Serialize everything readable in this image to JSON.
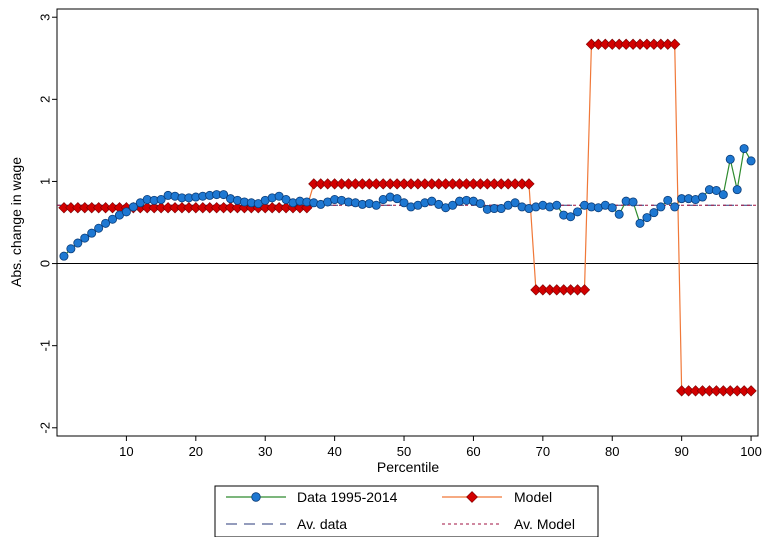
{
  "chart_data": {
    "type": "line",
    "xlabel": "Percentile",
    "ylabel": "Abs. change in wage",
    "xlim": [
      0,
      101
    ],
    "ylim": [
      -2.1,
      3.1
    ],
    "xticks": [
      10,
      20,
      30,
      40,
      50,
      60,
      70,
      80,
      90,
      100
    ],
    "xtick_labels": [
      "10",
      "20",
      "30",
      "40",
      "50",
      "60",
      "70",
      "80",
      "90",
      "100"
    ],
    "yticks": [
      -2,
      -1,
      0,
      1,
      2,
      3
    ],
    "ytick_labels": [
      "-2",
      "-1",
      "0",
      "1",
      "2",
      "3"
    ],
    "zero_line": true,
    "grid": false,
    "legend_position": "bottom",
    "series": [
      {
        "name": "Data 1995-2014",
        "kind": "line-markers",
        "line_color": "#2e8b2e",
        "marker_color": "#1e78d2",
        "marker": "circle",
        "x": [
          1,
          2,
          3,
          4,
          5,
          6,
          7,
          8,
          9,
          10,
          11,
          12,
          13,
          14,
          15,
          16,
          17,
          18,
          19,
          20,
          21,
          22,
          23,
          24,
          25,
          26,
          27,
          28,
          29,
          30,
          31,
          32,
          33,
          34,
          35,
          36,
          37,
          38,
          39,
          40,
          41,
          42,
          43,
          44,
          45,
          46,
          47,
          48,
          49,
          50,
          51,
          52,
          53,
          54,
          55,
          56,
          57,
          58,
          59,
          60,
          61,
          62,
          63,
          64,
          65,
          66,
          67,
          68,
          69,
          70,
          71,
          72,
          73,
          74,
          75,
          76,
          77,
          78,
          79,
          80,
          81,
          82,
          83,
          84,
          85,
          86,
          87,
          88,
          89,
          90,
          91,
          92,
          93,
          94,
          95,
          96,
          97,
          98,
          99,
          100
        ],
        "y": [
          0.09,
          0.18,
          0.25,
          0.31,
          0.37,
          0.43,
          0.49,
          0.54,
          0.59,
          0.63,
          0.69,
          0.74,
          0.78,
          0.77,
          0.78,
          0.83,
          0.82,
          0.8,
          0.8,
          0.81,
          0.82,
          0.83,
          0.84,
          0.84,
          0.79,
          0.77,
          0.75,
          0.74,
          0.73,
          0.77,
          0.8,
          0.82,
          0.78,
          0.74,
          0.76,
          0.75,
          0.74,
          0.72,
          0.75,
          0.78,
          0.77,
          0.75,
          0.74,
          0.72,
          0.73,
          0.71,
          0.78,
          0.81,
          0.79,
          0.74,
          0.69,
          0.71,
          0.74,
          0.76,
          0.72,
          0.68,
          0.71,
          0.76,
          0.77,
          0.76,
          0.73,
          0.66,
          0.67,
          0.67,
          0.71,
          0.74,
          0.69,
          0.67,
          0.69,
          0.71,
          0.69,
          0.71,
          0.59,
          0.57,
          0.63,
          0.71,
          0.69,
          0.68,
          0.71,
          0.68,
          0.6,
          0.76,
          0.75,
          0.49,
          0.56,
          0.62,
          0.69,
          0.77,
          0.69,
          0.79,
          0.79,
          0.78,
          0.81,
          0.9,
          0.89,
          0.84,
          1.27,
          0.9,
          1.4,
          1.25
        ]
      },
      {
        "name": "Model",
        "kind": "line-markers",
        "line_color": "#f07838",
        "marker_color": "#d20000",
        "marker": "diamond",
        "x": [
          1,
          2,
          3,
          4,
          5,
          6,
          7,
          8,
          9,
          10,
          11,
          12,
          13,
          14,
          15,
          16,
          17,
          18,
          19,
          20,
          21,
          22,
          23,
          24,
          25,
          26,
          27,
          28,
          29,
          30,
          31,
          32,
          33,
          34,
          35,
          36,
          37,
          38,
          39,
          40,
          41,
          42,
          43,
          44,
          45,
          46,
          47,
          48,
          49,
          50,
          51,
          52,
          53,
          54,
          55,
          56,
          57,
          58,
          59,
          60,
          61,
          62,
          63,
          64,
          65,
          66,
          67,
          68,
          69,
          70,
          71,
          72,
          73,
          74,
          75,
          76,
          77,
          78,
          79,
          80,
          81,
          82,
          83,
          84,
          85,
          86,
          87,
          88,
          89,
          90,
          91,
          92,
          93,
          94,
          95,
          96,
          97,
          98,
          99,
          100
        ],
        "y": [
          0.68,
          0.68,
          0.68,
          0.68,
          0.68,
          0.68,
          0.68,
          0.68,
          0.68,
          0.68,
          0.68,
          0.68,
          0.68,
          0.68,
          0.68,
          0.68,
          0.68,
          0.68,
          0.68,
          0.68,
          0.68,
          0.68,
          0.68,
          0.68,
          0.68,
          0.68,
          0.68,
          0.68,
          0.68,
          0.68,
          0.68,
          0.68,
          0.68,
          0.68,
          0.68,
          0.68,
          0.97,
          0.97,
          0.97,
          0.97,
          0.97,
          0.97,
          0.97,
          0.97,
          0.97,
          0.97,
          0.97,
          0.97,
          0.97,
          0.97,
          0.97,
          0.97,
          0.97,
          0.97,
          0.97,
          0.97,
          0.97,
          0.97,
          0.97,
          0.97,
          0.97,
          0.97,
          0.97,
          0.97,
          0.97,
          0.97,
          0.97,
          0.97,
          -0.32,
          -0.32,
          -0.32,
          -0.32,
          -0.32,
          -0.32,
          -0.32,
          -0.32,
          2.67,
          2.67,
          2.67,
          2.67,
          2.67,
          2.67,
          2.67,
          2.67,
          2.67,
          2.67,
          2.67,
          2.67,
          2.67,
          -1.55,
          -1.55,
          -1.55,
          -1.55,
          -1.55,
          -1.55,
          -1.55,
          -1.55,
          -1.55,
          -1.55,
          -1.55
        ]
      },
      {
        "name": "Av. data",
        "kind": "hline",
        "style": "long-dash",
        "line_color": "#2a3a7a",
        "y": 0.71
      },
      {
        "name": "Av. Model",
        "kind": "hline",
        "style": "short-dash",
        "line_color": "#a01040",
        "y": 0.71
      }
    ]
  }
}
